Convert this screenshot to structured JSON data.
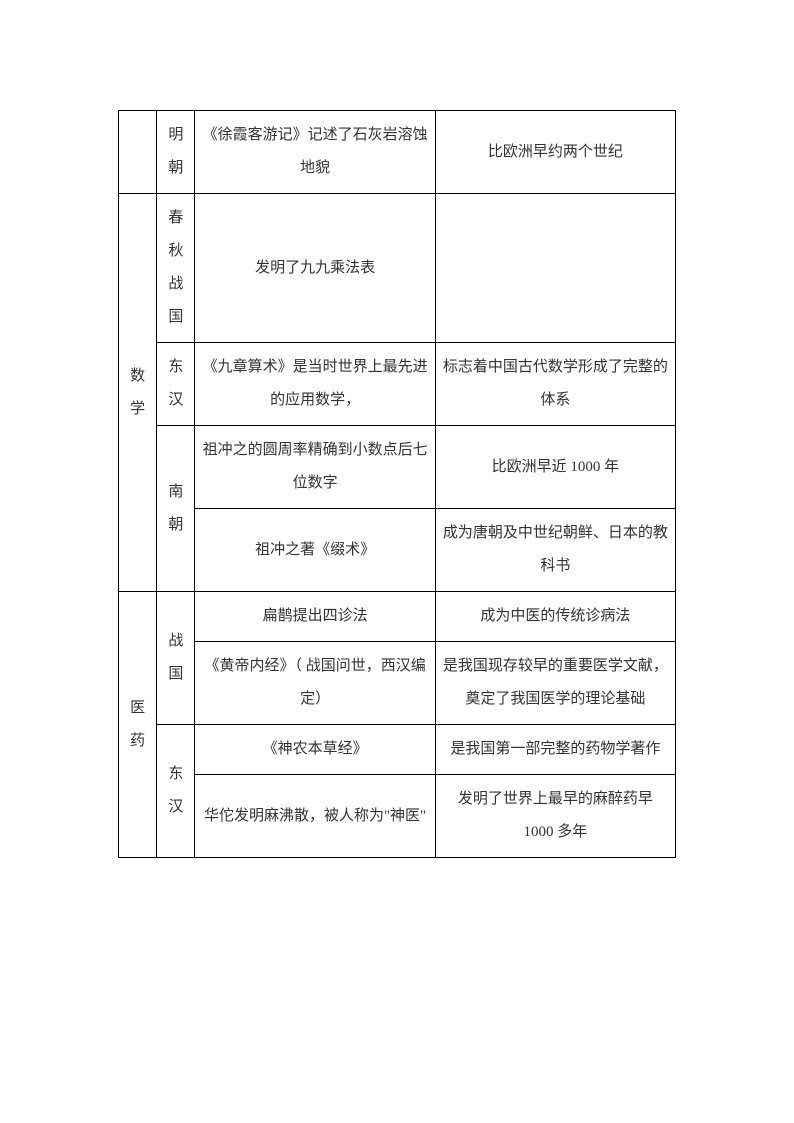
{
  "table": {
    "rows": [
      {
        "col1": "",
        "col2": "明朝",
        "col3": "《徐霞客游记》记述了石灰岩溶蚀地貌",
        "col4": "比欧洲早约两个世纪"
      },
      {
        "col1": "数学",
        "col2": "春秋战国",
        "col3": "发明了九九乘法表",
        "col4": ""
      },
      {
        "col2": "东汉",
        "col3": "《九章算术》是当时世界上最先进的应用数学，",
        "col4": "标志着中国古代数学形成了完整的体系"
      },
      {
        "col2": "南朝",
        "col3": "祖冲之的圆周率精确到小数点后七位数字",
        "col4": "比欧洲早近 1000 年"
      },
      {
        "col3": "祖冲之著《缀术》",
        "col4": "成为唐朝及中世纪朝鲜、日本的教科书"
      },
      {
        "col1": "医药",
        "col2": "战国",
        "col3": "扁鹊提出四诊法",
        "col4": "成为中医的传统诊病法"
      },
      {
        "col3": "《黄帝内经》（ 战国问世，西汉编定）",
        "col4": "是我国现存较早的重要医学文献，奠定了我国医学的理论基础"
      },
      {
        "col2": "东汉",
        "col3": "《神农本草经》",
        "col4": "是我国第一部完整的药物学著作"
      },
      {
        "col3": "华佗发明麻沸散，被人称为\"神医\"",
        "col4": "发明了世界上最早的麻醉药早 1000 多年"
      }
    ]
  }
}
